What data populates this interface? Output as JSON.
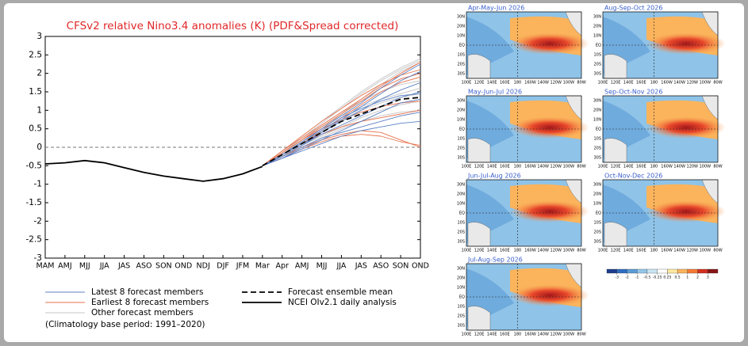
{
  "chart_data": [
    {
      "type": "line",
      "title": "CFSv2 relative Nino3.4 anomalies (K) (PDF&Spread corrected)",
      "categories": [
        "MAM",
        "AMJ",
        "MJJ",
        "JJA",
        "JAS",
        "ASO",
        "SON",
        "OND",
        "NDJ",
        "DJF",
        "JFM",
        "Mar",
        "Apr",
        "AMJ",
        "MJJ",
        "JJA",
        "JAS",
        "ASO",
        "SON",
        "OND"
      ],
      "ylim": [
        -3,
        3
      ],
      "yticks": [
        -3,
        -2.5,
        -2,
        -1.5,
        -1,
        -0.5,
        0,
        0.5,
        1,
        1.5,
        2,
        2.5,
        3
      ],
      "zero_line": true,
      "grid": false,
      "series": [
        {
          "name": "Latest 8 forecast members",
          "color": "#5b80c4",
          "members": [
            [
              null,
              null,
              null,
              null,
              null,
              null,
              null,
              null,
              null,
              null,
              null,
              -0.5,
              -0.25,
              0.05,
              0.35,
              0.6,
              0.85,
              1.1,
              1.35,
              1.5
            ],
            [
              null,
              null,
              null,
              null,
              null,
              null,
              null,
              null,
              null,
              null,
              null,
              -0.5,
              -0.2,
              0.15,
              0.5,
              0.85,
              1.2,
              1.6,
              1.95,
              2.25
            ],
            [
              null,
              null,
              null,
              null,
              null,
              null,
              null,
              null,
              null,
              null,
              null,
              -0.5,
              -0.3,
              -0.05,
              0.2,
              0.45,
              0.7,
              0.95,
              1.2,
              1.3
            ],
            [
              null,
              null,
              null,
              null,
              null,
              null,
              null,
              null,
              null,
              null,
              null,
              -0.5,
              -0.2,
              0.1,
              0.4,
              0.7,
              1.0,
              1.3,
              1.55,
              1.75
            ],
            [
              null,
              null,
              null,
              null,
              null,
              null,
              null,
              null,
              null,
              null,
              null,
              -0.5,
              -0.3,
              0.0,
              0.25,
              0.4,
              0.55,
              0.7,
              0.85,
              0.95
            ],
            [
              null,
              null,
              null,
              null,
              null,
              null,
              null,
              null,
              null,
              null,
              null,
              -0.5,
              -0.25,
              0.05,
              0.4,
              0.75,
              1.1,
              1.45,
              1.8,
              2.05
            ],
            [
              null,
              null,
              null,
              null,
              null,
              null,
              null,
              null,
              null,
              null,
              null,
              -0.5,
              -0.3,
              -0.1,
              0.1,
              0.3,
              0.45,
              0.55,
              0.65,
              0.7
            ],
            [
              null,
              null,
              null,
              null,
              null,
              null,
              null,
              null,
              null,
              null,
              null,
              -0.5,
              -0.2,
              0.15,
              0.45,
              0.8,
              1.05,
              1.25,
              1.4,
              1.45
            ]
          ]
        },
        {
          "name": "Earliest 8 forecast members",
          "color": "#e8734e",
          "members": [
            [
              null,
              null,
              null,
              null,
              null,
              null,
              null,
              null,
              null,
              null,
              null,
              -0.5,
              -0.15,
              0.2,
              0.55,
              0.9,
              1.25,
              1.6,
              1.85,
              2.0
            ],
            [
              null,
              null,
              null,
              null,
              null,
              null,
              null,
              null,
              null,
              null,
              null,
              -0.5,
              -0.2,
              0.1,
              0.35,
              0.55,
              0.7,
              0.8,
              0.9,
              1.0
            ],
            [
              null,
              null,
              null,
              null,
              null,
              null,
              null,
              null,
              null,
              null,
              null,
              -0.5,
              -0.1,
              0.3,
              0.7,
              1.05,
              1.4,
              1.7,
              1.95,
              2.1
            ],
            [
              null,
              null,
              null,
              null,
              null,
              null,
              null,
              null,
              null,
              null,
              null,
              -0.5,
              -0.25,
              0.0,
              0.2,
              0.35,
              0.45,
              0.4,
              0.2,
              0.0
            ],
            [
              null,
              null,
              null,
              null,
              null,
              null,
              null,
              null,
              null,
              null,
              null,
              -0.5,
              -0.15,
              0.2,
              0.5,
              0.75,
              0.95,
              1.1,
              1.2,
              1.25
            ],
            [
              null,
              null,
              null,
              null,
              null,
              null,
              null,
              null,
              null,
              null,
              null,
              -0.5,
              -0.2,
              0.1,
              0.45,
              0.8,
              1.15,
              1.5,
              1.75,
              1.9
            ],
            [
              null,
              null,
              null,
              null,
              null,
              null,
              null,
              null,
              null,
              null,
              null,
              -0.5,
              -0.3,
              -0.05,
              0.15,
              0.3,
              0.35,
              0.3,
              0.15,
              0.05
            ],
            [
              null,
              null,
              null,
              null,
              null,
              null,
              null,
              null,
              null,
              null,
              null,
              -0.5,
              -0.1,
              0.25,
              0.6,
              0.95,
              1.3,
              1.65,
              2.0,
              2.3
            ]
          ]
        },
        {
          "name": "Other forecast members",
          "color": "#c4c4c4",
          "members": [
            [
              null,
              null,
              null,
              null,
              null,
              null,
              null,
              null,
              null,
              null,
              null,
              -0.5,
              -0.15,
              0.25,
              0.65,
              1.05,
              1.45,
              1.8,
              2.1,
              2.35
            ],
            [
              null,
              null,
              null,
              null,
              null,
              null,
              null,
              null,
              null,
              null,
              null,
              -0.5,
              -0.2,
              0.15,
              0.5,
              0.9,
              1.3,
              1.7,
              2.05,
              2.3
            ],
            [
              null,
              null,
              null,
              null,
              null,
              null,
              null,
              null,
              null,
              null,
              null,
              -0.5,
              -0.25,
              0.05,
              0.3,
              0.55,
              0.8,
              1.0,
              1.15,
              1.25
            ],
            [
              null,
              null,
              null,
              null,
              null,
              null,
              null,
              null,
              null,
              null,
              null,
              -0.5,
              -0.1,
              0.3,
              0.7,
              1.1,
              1.5,
              1.85,
              2.15,
              2.4
            ],
            [
              null,
              null,
              null,
              null,
              null,
              null,
              null,
              null,
              null,
              null,
              null,
              -0.5,
              -0.3,
              0.0,
              0.25,
              0.5,
              0.7,
              0.85,
              0.95,
              1.0
            ],
            [
              null,
              null,
              null,
              null,
              null,
              null,
              null,
              null,
              null,
              null,
              null,
              -0.5,
              -0.2,
              0.2,
              0.6,
              0.95,
              1.25,
              1.5,
              1.7,
              1.8
            ],
            [
              null,
              null,
              null,
              null,
              null,
              null,
              null,
              null,
              null,
              null,
              null,
              -0.5,
              -0.25,
              0.1,
              0.45,
              0.75,
              1.0,
              1.2,
              1.35,
              1.45
            ],
            [
              null,
              null,
              null,
              null,
              null,
              null,
              null,
              null,
              null,
              null,
              null,
              -0.5,
              -0.15,
              0.2,
              0.55,
              0.85,
              1.1,
              1.3,
              1.45,
              1.6
            ]
          ]
        },
        {
          "name": "Forecast ensemble mean",
          "color": "#000000",
          "dashed": true,
          "values": [
            null,
            null,
            null,
            null,
            null,
            null,
            null,
            null,
            null,
            null,
            null,
            -0.5,
            -0.2,
            0.1,
            0.4,
            0.7,
            0.9,
            1.1,
            1.3,
            1.35
          ]
        },
        {
          "name": "NCEI OIv2.1 daily analysis",
          "color": "#000000",
          "dashed": false,
          "values": [
            -0.45,
            -0.42,
            -0.36,
            -0.42,
            -0.55,
            -0.68,
            -0.78,
            -0.85,
            -0.92,
            -0.85,
            -0.72,
            -0.52,
            null,
            null,
            null,
            null,
            null,
            null,
            null,
            null
          ]
        }
      ],
      "footnote": "(Climatology base period: 1991–2020)"
    },
    {
      "type": "map",
      "panels": [
        "Apr-May-Jun 2026",
        "May-Jun-Jul 2026",
        "Jun-Jul-Aug 2026",
        "Jul-Aug-Sep 2026",
        "Aug-Sep-Oct 2026",
        "Sep-Oct-Nov 2026",
        "Oct-Nov-Dec 2026"
      ],
      "lat_labels": [
        "30N",
        "20N",
        "10N",
        "EQ",
        "10S",
        "20S",
        "30S"
      ],
      "lon_labels": [
        "100E",
        "120E",
        "140E",
        "160E",
        "180",
        "160W",
        "140W",
        "120W",
        "100W",
        "80W"
      ],
      "colorbar": {
        "levels": [
          -3,
          -2,
          -1,
          -0.5,
          -0.25,
          0.25,
          0.5,
          1,
          2,
          3
        ],
        "colors": [
          "#1d3c8c",
          "#2f6cc0",
          "#5a9bd6",
          "#93c6e8",
          "#c9e4f3",
          "#ffffff",
          "#fde8a2",
          "#fbb45c",
          "#f47a35",
          "#d32f1f",
          "#861616"
        ]
      }
    }
  ]
}
